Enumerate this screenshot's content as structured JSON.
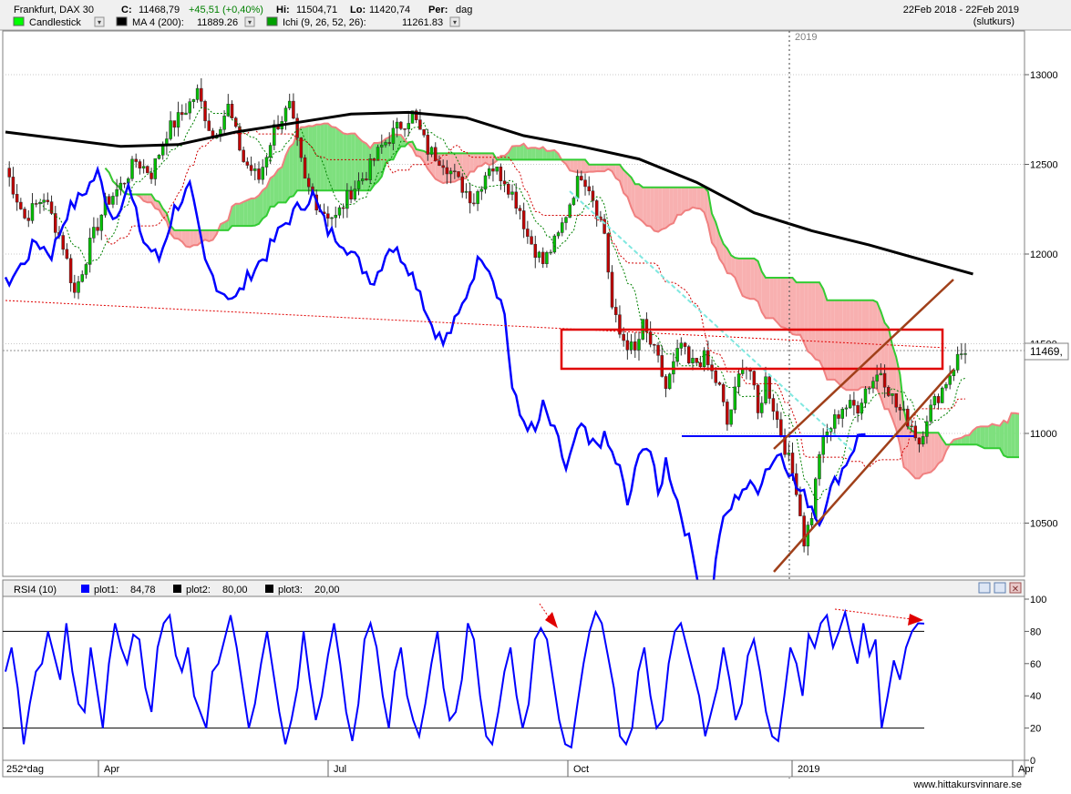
{
  "header": {
    "instrument": "Frankfurt, DAX 30",
    "close_label": "C:",
    "close_value": "11468,79",
    "change": "+45,51 (+0,40%)",
    "high_label": "Hi:",
    "high_value": "11504,71",
    "low_label": "Lo:",
    "low_value": "11420,74",
    "period_label": "Per:",
    "period_value": "dag",
    "date_range": "22Feb 2018 - 22Feb 2019",
    "price_basis": "(slutkurs)"
  },
  "legend": [
    {
      "label": "Candlestick",
      "color": "#00ff00",
      "value": ""
    },
    {
      "label": "MA 4 (200):",
      "color": "#000000",
      "value": "11889.26"
    },
    {
      "label": "Ichi (9, 26, 52, 26):",
      "color": "#00a000",
      "value": "11261.83"
    }
  ],
  "rsi_legend": [
    {
      "label": "RSI4 (10)",
      "color": "",
      "value": ""
    },
    {
      "label": "plot1:",
      "color": "#0000ff",
      "value": "84,78"
    },
    {
      "label": "plot2:",
      "color": "#000000",
      "value": "80,00"
    },
    {
      "label": "plot3:",
      "color": "#000000",
      "value": "20,00"
    }
  ],
  "year_marker": "2019",
  "last_price_tag": "11469,",
  "footer": {
    "bars_label": "252*dag",
    "month_labels": [
      "Apr",
      "Jul",
      "Oct",
      "2019",
      "Apr"
    ],
    "watermark": "www.hittakursvinnare.se"
  },
  "colors": {
    "bull_candle": "#00c000",
    "bear_candle": "#c00000",
    "cloud_bull_fill": "#7ee07e",
    "cloud_bear_fill": "#f8b0b0",
    "span_a": "#f08080",
    "span_b": "#33cc33",
    "ma": "#000000",
    "rsi": "#0000ff",
    "price_line": "#0000ff",
    "annotation_red": "#e00000",
    "channel": "#a0401a",
    "cyan_trend": "#7fe8e0"
  },
  "chart_data": [
    {
      "type": "candlestick",
      "title": "Frankfurt, DAX 30",
      "x_range": [
        "2018-02-22",
        "2019-02-22"
      ],
      "ylim": [
        10250,
        13300
      ],
      "y_ticks": [
        10500,
        11000,
        11500,
        12000,
        12500,
        13000
      ],
      "grid": true,
      "x_tick_labels": [
        "Apr",
        "Jul",
        "Oct",
        "2019",
        "Apr"
      ],
      "last_close": 11468.79,
      "series": [
        {
          "name": "MA 4 (200)",
          "kind": "line",
          "value": 11889.26,
          "points": [
            [
              0,
              12680
            ],
            [
              15,
              12640
            ],
            [
              30,
              12600
            ],
            [
              45,
              12610
            ],
            [
              60,
              12680
            ],
            [
              75,
              12730
            ],
            [
              90,
              12780
            ],
            [
              105,
              12790
            ],
            [
              120,
              12760
            ],
            [
              135,
              12660
            ],
            [
              150,
              12600
            ],
            [
              165,
              12530
            ],
            [
              180,
              12400
            ],
            [
              195,
              12230
            ],
            [
              210,
              12130
            ],
            [
              225,
              12050
            ],
            [
              240,
              11960
            ],
            [
              252,
              11889
            ]
          ]
        },
        {
          "name": "Ichi (9, 26, 52, 26)",
          "kind": "cloud",
          "value": 11261.83
        }
      ],
      "approx_close_path": [
        [
          0,
          12480
        ],
        [
          5,
          12200
        ],
        [
          10,
          12320
        ],
        [
          15,
          12050
        ],
        [
          18,
          11780
        ],
        [
          22,
          12050
        ],
        [
          26,
          12280
        ],
        [
          30,
          12380
        ],
        [
          34,
          12520
        ],
        [
          38,
          12450
        ],
        [
          42,
          12680
        ],
        [
          46,
          12780
        ],
        [
          50,
          12900
        ],
        [
          54,
          12650
        ],
        [
          58,
          12820
        ],
        [
          62,
          12520
        ],
        [
          66,
          12420
        ],
        [
          70,
          12700
        ],
        [
          74,
          12820
        ],
        [
          78,
          12400
        ],
        [
          82,
          12250
        ],
        [
          86,
          12200
        ],
        [
          90,
          12350
        ],
        [
          94,
          12450
        ],
        [
          98,
          12600
        ],
        [
          102,
          12700
        ],
        [
          106,
          12780
        ],
        [
          110,
          12580
        ],
        [
          114,
          12520
        ],
        [
          118,
          12400
        ],
        [
          122,
          12300
        ],
        [
          126,
          12500
        ],
        [
          130,
          12420
        ],
        [
          134,
          12250
        ],
        [
          136,
          12100
        ],
        [
          140,
          11950
        ],
        [
          144,
          12100
        ],
        [
          148,
          12350
        ],
        [
          150,
          12450
        ],
        [
          152,
          12380
        ],
        [
          156,
          12120
        ],
        [
          158,
          11700
        ],
        [
          160,
          11550
        ],
        [
          164,
          11450
        ],
        [
          166,
          11600
        ],
        [
          170,
          11400
        ],
        [
          172,
          11250
        ],
        [
          176,
          11500
        ],
        [
          178,
          11380
        ],
        [
          182,
          11420
        ],
        [
          186,
          11250
        ],
        [
          188,
          11050
        ],
        [
          192,
          11400
        ],
        [
          194,
          11350
        ],
        [
          196,
          11100
        ],
        [
          198,
          11300
        ],
        [
          202,
          11000
        ],
        [
          204,
          10850
        ],
        [
          206,
          10700
        ],
        [
          208,
          10400
        ],
        [
          210,
          10550
        ],
        [
          212,
          10900
        ],
        [
          214,
          11000
        ],
        [
          218,
          11150
        ],
        [
          222,
          11150
        ],
        [
          224,
          11250
        ],
        [
          228,
          11350
        ],
        [
          232,
          11150
        ],
        [
          236,
          11050
        ],
        [
          238,
          10950
        ],
        [
          240,
          11100
        ],
        [
          244,
          11250
        ],
        [
          248,
          11420
        ],
        [
          250,
          11469
        ]
      ],
      "annotations": [
        {
          "kind": "rectangle",
          "y_range": [
            11400,
            11620
          ],
          "color": "red"
        },
        {
          "kind": "horizontal_segment",
          "y": 11000,
          "color": "blue"
        },
        {
          "kind": "parallel_channel",
          "color": "brown"
        }
      ]
    },
    {
      "type": "line",
      "title": "RSI4 (10)",
      "ylim": [
        0,
        100
      ],
      "y_ticks": [
        0,
        20,
        40,
        60,
        80,
        100
      ],
      "series": [
        {
          "name": "plot1",
          "value": 84.78,
          "values": [
            55,
            70,
            45,
            10,
            35,
            55,
            60,
            80,
            65,
            50,
            85,
            55,
            35,
            30,
            70,
            45,
            20,
            60,
            85,
            70,
            60,
            78,
            75,
            45,
            30,
            70,
            85,
            90,
            65,
            55,
            70,
            40,
            30,
            20,
            55,
            60,
            75,
            90,
            70,
            45,
            20,
            35,
            60,
            80,
            55,
            30,
            10,
            25,
            45,
            80,
            50,
            25,
            40,
            65,
            85,
            60,
            30,
            12,
            35,
            75,
            85,
            70,
            40,
            20,
            55,
            70,
            40,
            25,
            15,
            35,
            60,
            80,
            45,
            25,
            30,
            50,
            85,
            75,
            40,
            15,
            10,
            30,
            55,
            70,
            40,
            20,
            35,
            75,
            82,
            75,
            50,
            25,
            10,
            8,
            35,
            60,
            80,
            92,
            85,
            65,
            45,
            15,
            10,
            20,
            55,
            70,
            40,
            20,
            25,
            60,
            80,
            85,
            70,
            55,
            40,
            15,
            30,
            45,
            70,
            50,
            25,
            35,
            65,
            75,
            55,
            30,
            15,
            12,
            40,
            70,
            60,
            40,
            78,
            70,
            85,
            90,
            70,
            80,
            92,
            75,
            60,
            85,
            65,
            75,
            20,
            40,
            62,
            50,
            70,
            80,
            85,
            84.78
          ]
        },
        {
          "name": "plot2",
          "value": 80,
          "values": [
            80
          ]
        },
        {
          "name": "plot3",
          "value": 20,
          "values": [
            20
          ]
        }
      ]
    }
  ]
}
